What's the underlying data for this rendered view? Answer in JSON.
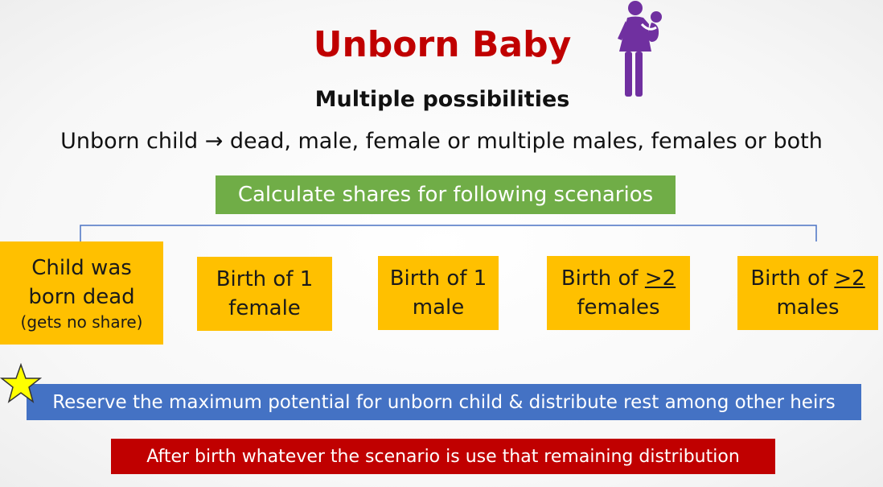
{
  "title": "Unborn Baby",
  "subtitle": "Multiple possibilities",
  "intro": "Unborn child → dead, male, female or multiple males, females or both",
  "scenarios_banner": "Calculate shares for following scenarios",
  "boxes": {
    "dead": {
      "line1": "Child was",
      "line2": "born dead",
      "note": "(gets no share)"
    },
    "female": {
      "line1": "Birth of 1",
      "line2": "female"
    },
    "male": {
      "line1": "Birth of 1",
      "line2": "male"
    },
    "females": {
      "prefix": "Birth of ",
      "symbol": ">2",
      "line2": "females"
    },
    "males": {
      "prefix": "Birth of ",
      "symbol": ">2",
      "line2": "males"
    }
  },
  "reserve_banner": "Reserve the maximum potential for unborn child & distribute rest among other heirs",
  "after_banner": "After birth whatever the scenario is use that remaining distribution",
  "icons": {
    "mother": "mother-with-child-icon",
    "star": "star-icon"
  },
  "colors": {
    "title": "#c00000",
    "green": "#70ad47",
    "box": "#ffc000",
    "blue": "#4472c4",
    "red": "#c00000",
    "purple": "#7030a0",
    "star": "#ffff00"
  }
}
